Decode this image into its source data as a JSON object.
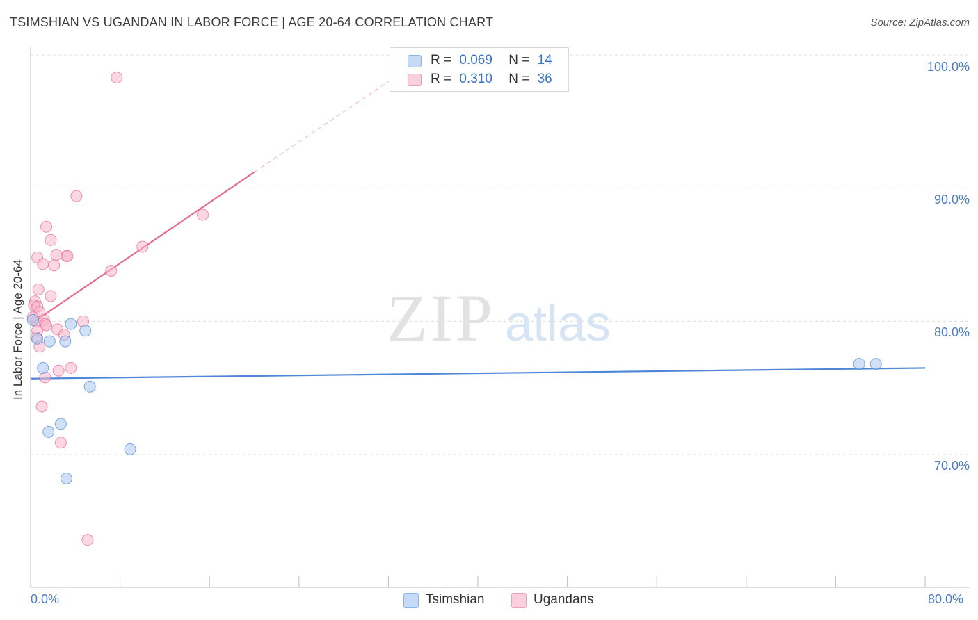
{
  "header": {
    "title": "TSIMSHIAN VS UGANDAN IN LABOR FORCE | AGE 20-64 CORRELATION CHART",
    "source": "Source: ZipAtlas.com"
  },
  "watermark": {
    "zip": "ZIP",
    "atlas": "atlas"
  },
  "legend": {
    "rows": [
      {
        "r_label": "R =",
        "r_value": "0.069",
        "n_label": "N =",
        "n_value": "14",
        "color": "#aac8f0"
      },
      {
        "r_label": "R =",
        "r_value": "0.310",
        "n_label": "N =",
        "n_value": "36",
        "color": "#f6b6cb"
      }
    ]
  },
  "bottom_legend": [
    {
      "label": "Tsimshian",
      "color": "#aac8f0"
    },
    {
      "label": "Ugandans",
      "color": "#f6b6cb"
    }
  ],
  "chart_data": {
    "type": "scatter",
    "title": "TSIMSHIAN VS UGANDAN IN LABOR FORCE | AGE 20-64 CORRELATION CHART",
    "ylabel": "In Labor Force | Age 20-64",
    "xlabel": "",
    "xlim": [
      0,
      80
    ],
    "ylim": [
      62,
      102
    ],
    "x_tick_labels": [
      "0.0%",
      "80.0%"
    ],
    "y_ticks": [
      70,
      80,
      90,
      100
    ],
    "y_tick_labels": [
      "70.0%",
      "80.0%",
      "90.0%",
      "100.0%"
    ],
    "grid": true,
    "legend_position": "top-center",
    "series": [
      {
        "name": "Tsimshian",
        "color": "#4f86d6",
        "fill": "#aac8f0",
        "points": [
          [
            0.6,
            78.7
          ],
          [
            1.1,
            76.5
          ],
          [
            1.6,
            71.7
          ],
          [
            1.7,
            78.5
          ],
          [
            2.7,
            72.3
          ],
          [
            3.1,
            78.5
          ],
          [
            3.2,
            68.2
          ],
          [
            3.6,
            79.8
          ],
          [
            4.9,
            79.3
          ],
          [
            5.3,
            75.1
          ],
          [
            8.9,
            70.4
          ],
          [
            74.1,
            76.8
          ],
          [
            75.6,
            76.8
          ],
          [
            0.2,
            80.1
          ]
        ],
        "trend": {
          "x": [
            0,
            80
          ],
          "y": [
            75.7,
            76.5
          ]
        }
      },
      {
        "name": "Ugandans",
        "color": "#e46a94",
        "fill": "#f6b6cb",
        "points": [
          [
            7.7,
            98.3
          ],
          [
            4.1,
            89.4
          ],
          [
            1.4,
            87.1
          ],
          [
            1.8,
            86.1
          ],
          [
            15.4,
            88.0
          ],
          [
            10.0,
            85.6
          ],
          [
            2.3,
            85.0
          ],
          [
            3.2,
            84.9
          ],
          [
            3.3,
            84.9
          ],
          [
            0.6,
            84.8
          ],
          [
            1.1,
            84.3
          ],
          [
            2.1,
            84.2
          ],
          [
            7.2,
            83.8
          ],
          [
            0.7,
            82.4
          ],
          [
            1.8,
            81.9
          ],
          [
            0.4,
            81.5
          ],
          [
            0.3,
            81.2
          ],
          [
            0.6,
            81.1
          ],
          [
            0.8,
            80.7
          ],
          [
            0.2,
            80.3
          ],
          [
            0.5,
            80.0
          ],
          [
            1.2,
            80.1
          ],
          [
            1.3,
            79.8
          ],
          [
            4.7,
            80.0
          ],
          [
            1.4,
            79.7
          ],
          [
            2.4,
            79.4
          ],
          [
            0.6,
            79.3
          ],
          [
            3.0,
            79.0
          ],
          [
            0.5,
            78.8
          ],
          [
            0.8,
            78.1
          ],
          [
            3.6,
            76.5
          ],
          [
            2.5,
            76.3
          ],
          [
            1.3,
            75.8
          ],
          [
            1.0,
            73.6
          ],
          [
            2.7,
            70.9
          ],
          [
            5.1,
            63.6
          ]
        ],
        "trend": {
          "x": [
            0,
            20
          ],
          "y": [
            79.8,
            91.2
          ]
        },
        "trend_extension": {
          "x": [
            20,
            32
          ],
          "y": [
            91.2,
            98.0
          ]
        }
      }
    ]
  }
}
